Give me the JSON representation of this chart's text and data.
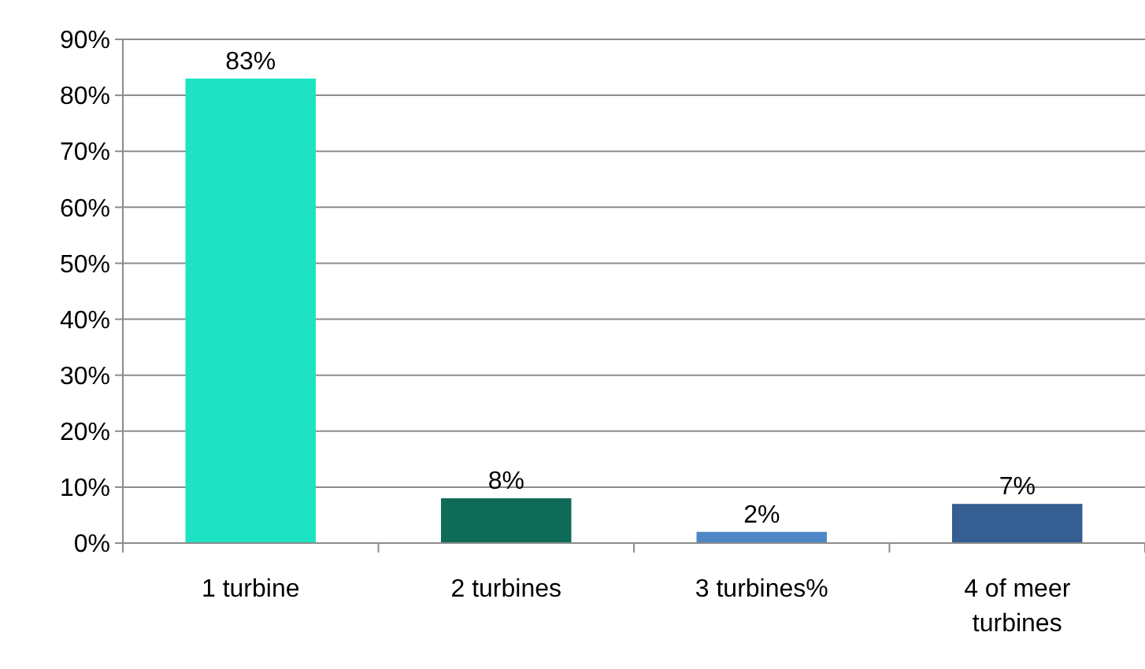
{
  "chart_data": {
    "type": "bar",
    "categories": [
      "1 turbine",
      "2 turbines",
      "3 turbines%",
      "4 of meer turbines"
    ],
    "values": [
      83,
      8,
      2,
      7
    ],
    "colors": [
      "#1de3c3",
      "#0e6b57",
      "#4f86c6",
      "#355e93"
    ],
    "value_labels": [
      "83%",
      "8%",
      "2%",
      "7%"
    ],
    "ylim": [
      0,
      90
    ],
    "yticks": [
      {
        "value": 0,
        "label": "0%"
      },
      {
        "value": 10,
        "label": "10%"
      },
      {
        "value": 20,
        "label": "20%"
      },
      {
        "value": 30,
        "label": "30%"
      },
      {
        "value": 40,
        "label": "40%"
      },
      {
        "value": 50,
        "label": "50%"
      },
      {
        "value": 60,
        "label": "60%"
      },
      {
        "value": 70,
        "label": "70%"
      },
      {
        "value": 80,
        "label": "80%"
      },
      {
        "value": 90,
        "label": "90%"
      }
    ],
    "grid": "y"
  }
}
